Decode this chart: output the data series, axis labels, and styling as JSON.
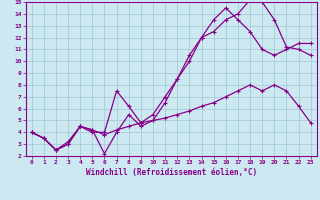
{
  "xlabel": "Windchill (Refroidissement éolien,°C)",
  "xlim": [
    -0.5,
    23.5
  ],
  "ylim": [
    2,
    15
  ],
  "xticks": [
    0,
    1,
    2,
    3,
    4,
    5,
    6,
    7,
    8,
    9,
    10,
    11,
    12,
    13,
    14,
    15,
    16,
    17,
    18,
    19,
    20,
    21,
    22,
    23
  ],
  "yticks": [
    2,
    3,
    4,
    5,
    6,
    7,
    8,
    9,
    10,
    11,
    12,
    13,
    14,
    15
  ],
  "background_color": "#cce8f0",
  "grid_color": "#aaccd8",
  "line_color": "#880088",
  "line1_x": [
    0,
    1,
    2,
    3,
    4,
    5,
    6,
    7,
    8,
    9,
    10,
    11,
    12,
    13,
    14,
    15,
    16,
    17,
    18,
    19,
    20,
    21,
    22,
    23
  ],
  "line1_y": [
    4.0,
    3.5,
    2.5,
    3.0,
    4.5,
    4.2,
    2.2,
    4.0,
    5.5,
    4.5,
    5.0,
    6.5,
    8.5,
    10.5,
    12.0,
    12.5,
    13.5,
    14.0,
    15.2,
    15.0,
    13.5,
    11.2,
    11.0,
    10.5
  ],
  "line2_x": [
    0,
    1,
    2,
    3,
    4,
    5,
    6,
    7,
    8,
    9,
    10,
    11,
    12,
    13,
    14,
    15,
    16,
    17,
    18,
    19,
    20,
    21,
    22,
    23
  ],
  "line2_y": [
    4.0,
    3.5,
    2.5,
    3.0,
    4.5,
    4.0,
    4.0,
    7.5,
    6.2,
    4.8,
    5.5,
    7.0,
    8.5,
    10.0,
    12.0,
    13.5,
    14.5,
    13.5,
    12.5,
    11.0,
    10.5,
    11.0,
    11.5,
    11.5
  ],
  "line3_x": [
    0,
    1,
    2,
    3,
    4,
    5,
    6,
    7,
    8,
    9,
    10,
    11,
    12,
    13,
    14,
    15,
    16,
    17,
    18,
    19,
    20,
    21,
    22,
    23
  ],
  "line3_y": [
    4.0,
    3.5,
    2.5,
    3.2,
    4.5,
    4.2,
    3.8,
    4.2,
    4.5,
    4.8,
    5.0,
    5.2,
    5.5,
    5.8,
    6.2,
    6.5,
    7.0,
    7.5,
    8.0,
    7.5,
    8.0,
    7.5,
    6.2,
    4.8
  ]
}
